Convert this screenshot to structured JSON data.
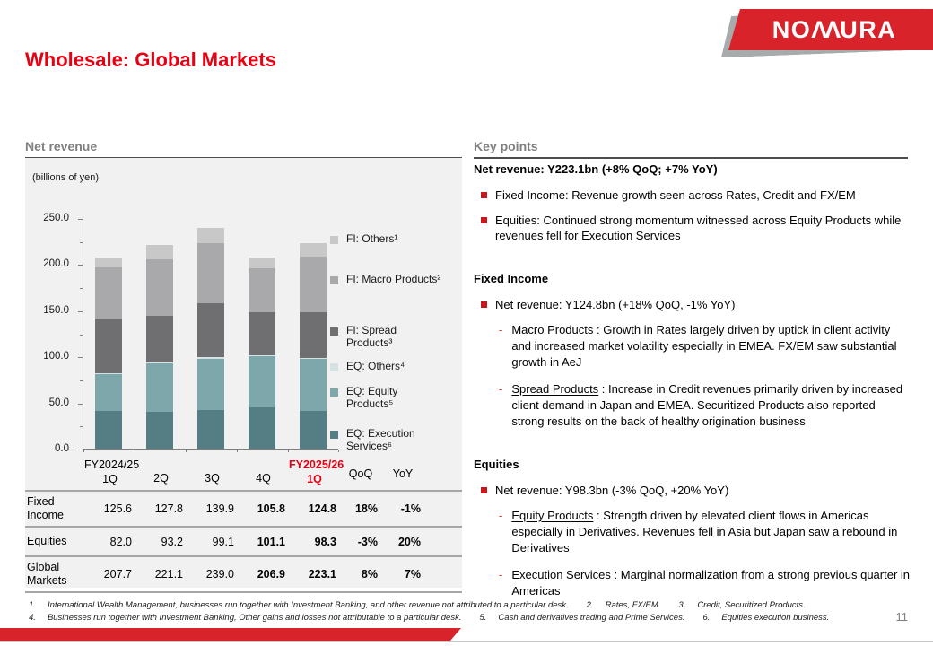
{
  "slide": {
    "title": "Wholesale: Global Markets",
    "brand": "NOMURA",
    "page_number": "11"
  },
  "colors": {
    "accent_red": "#e60012",
    "banner_red": "#d8232a",
    "bullet_red": "#c8161d",
    "panel_gray": "#f1f1f2",
    "header_gray": "#7f7f7f"
  },
  "net_revenue_panel": {
    "title": "Net revenue",
    "unit_label": "(billions of yen)"
  },
  "chart_data": {
    "type": "stacked_bar",
    "title": "Net revenue",
    "ylabel": "(billions of yen)",
    "ylim": [
      0,
      250
    ],
    "yticks": [
      0,
      50,
      100,
      150,
      200,
      250
    ],
    "ytick_labels": [
      "0.0",
      "50.0",
      "100.0",
      "150.0",
      "200.0",
      "250.0"
    ],
    "grid": false,
    "legend_position": "right",
    "categories": [
      "FY2024/25 1Q",
      "2Q",
      "3Q",
      "4Q",
      "FY2025/26 1Q"
    ],
    "totals": [
      207.7,
      221.1,
      239.0,
      206.9,
      223.1
    ],
    "series": [
      {
        "name": "EQ: Execution Services⁶",
        "legend_label": "EQ: Execution\nServices⁶",
        "color": "#557e84",
        "values": [
          40.5,
          40.0,
          42.0,
          45.0,
          40.5
        ]
      },
      {
        "name": "EQ: Equity Products⁵",
        "legend_label": "EQ: Equity\nProducts⁵",
        "color": "#7da7ab",
        "values": [
          41.0,
          52.0,
          55.6,
          55.0,
          56.5
        ]
      },
      {
        "name": "EQ: Others⁴",
        "legend_label": "EQ: Others⁴",
        "color": "#d6e1e3",
        "values": [
          0.5,
          1.2,
          1.5,
          1.1,
          1.3
        ]
      },
      {
        "name": "FI: Spread Products³",
        "legend_label": "FI: Spread\nProducts³",
        "color": "#6f6e70",
        "values": [
          59.5,
          50.7,
          58.7,
          46.3,
          49.1
        ]
      },
      {
        "name": "FI: Macro Products²",
        "legend_label": "FI: Macro Products²",
        "color": "#a9a9ab",
        "values": [
          55.0,
          61.0,
          65.1,
          48.6,
          60.6
        ]
      },
      {
        "name": "FI: Others¹",
        "legend_label": "FI: Others¹",
        "color": "#c8c8c9",
        "values": [
          11.1,
          16.1,
          16.1,
          10.9,
          15.1
        ]
      }
    ],
    "subtotals": {
      "fixed_income": [
        125.6,
        127.8,
        139.9,
        105.8,
        124.8
      ],
      "equities": [
        82.0,
        93.2,
        99.1,
        101.1,
        98.3
      ]
    }
  },
  "table": {
    "header": {
      "fy_prev": "FY2024/25",
      "q1": "1Q",
      "q2": "2Q",
      "q3": "3Q",
      "q4": "4Q",
      "fy_new": "FY2025/26",
      "q1_new": "1Q",
      "qoq": "QoQ",
      "yoy": "YoY"
    },
    "rows": [
      {
        "label": "Fixed Income",
        "values": [
          "125.6",
          "127.8",
          "139.9",
          "105.8",
          "124.8",
          "18%",
          "-1%"
        ]
      },
      {
        "label": "Equities",
        "values": [
          "82.0",
          "93.2",
          "99.1",
          "101.1",
          "98.3",
          "-3%",
          "20%"
        ]
      },
      {
        "label": "Global Markets",
        "values": [
          "207.7",
          "221.1",
          "239.0",
          "206.9",
          "223.1",
          "8%",
          "7%"
        ]
      }
    ]
  },
  "key_points": {
    "title": "Key points",
    "summary_heading": "Net revenue: Y223.1bn (+8% QoQ; +7% YoY)",
    "summary_bullets": [
      "Fixed Income: Revenue growth seen across Rates, Credit and FX/EM",
      "Equities: Continued strong momentum witnessed across Equity Products while revenues fell for Execution Services"
    ],
    "sections": [
      {
        "heading": "Fixed Income",
        "bullet": "Net revenue: Y124.8bn (+18% QoQ, -1% YoY)",
        "subs": [
          {
            "term": "Macro Products",
            "text": "Growth in Rates largely driven by uptick in client activity and increased market volatility especially in EMEA. FX/EM saw substantial growth in AeJ"
          },
          {
            "term": "Spread Products",
            "text": "Increase in Credit revenues primarily driven by increased client demand in Japan and EMEA. Securitized Products also reported strong results on the back of healthy origination business"
          }
        ]
      },
      {
        "heading": "Equities",
        "bullet": "Net revenue: Y98.3bn (-3% QoQ, +20% YoY)",
        "subs": [
          {
            "term": "Equity Products",
            "text": "Strength driven by elevated client flows in Americas especially in Derivatives. Revenues fell in Asia but Japan saw a rebound in Derivatives"
          },
          {
            "term": "Execution Services",
            "text": "Marginal normalization from a strong previous quarter in Americas"
          }
        ]
      }
    ]
  },
  "footnotes": {
    "line1": [
      {
        "num": "1.",
        "text": "International Wealth Management, businesses run together with Investment Banking, and other revenue not attributed to a particular desk."
      },
      {
        "num": "2.",
        "text": "Rates, FX/EM."
      },
      {
        "num": "3.",
        "text": "Credit, Securitized Products."
      }
    ],
    "line2": [
      {
        "num": "4.",
        "text": "Businesses run together with Investment Banking, Other gains and losses not attributable to a particular desk."
      },
      {
        "num": "5.",
        "text": "Cash and derivatives trading and Prime Services."
      },
      {
        "num": "6.",
        "text": "Equities execution business."
      }
    ]
  }
}
